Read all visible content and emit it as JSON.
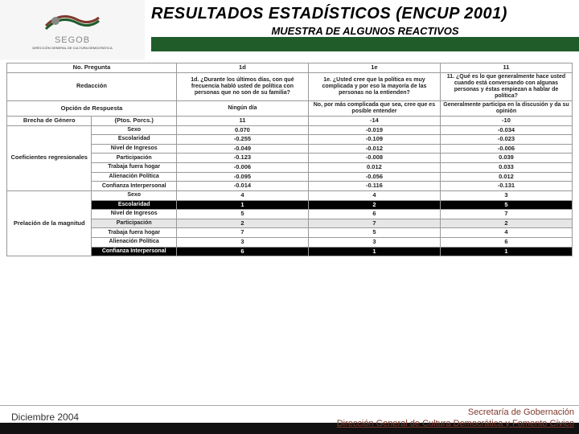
{
  "header": {
    "logo_label": "SEGOB",
    "logo_sub": "DIRECCIÓN GENERAL DE\nCULTURA DEMOCRÁTICA",
    "title": "RESULTADOS ESTADÍSTICOS (ENCUP 2001)",
    "subtitle": "MUESTRA DE ALGUNOS REACTIVOS"
  },
  "colors": {
    "green": "#1f5c2a",
    "brown": "#7e3a2c",
    "black": "#111111",
    "grey": "#e6e6e6",
    "border": "#999999"
  },
  "table": {
    "col_widths": [
      "15%",
      "15%",
      "23.33%",
      "23.33%",
      "23.33%"
    ],
    "head": {
      "r1": [
        "No. Pregunta",
        "",
        "1d",
        "1e",
        "11"
      ],
      "r2_label": "Redacción",
      "r2": [
        "1d. ¿Durante los últimos días, con qué frecuencia habló usted de política con personas que no son de su familia?",
        "1e. ¿Usted cree que la política es muy complicada y por eso la mayoría de las personas no la entienden?",
        "11. ¿Qué es lo que generalmente hace usted cuando está conversando con algunas personas y éstas empiezan a hablar de política?"
      ],
      "r3_label": "Opción de Respuesta",
      "r3": [
        "Ningún día",
        "No, por más complicada que sea, cree que es posible entender",
        "Generalmente participa en la discusión y da su opinión"
      ],
      "r4": [
        "Brecha de Género",
        "(Ptos. Porcs.)",
        "11",
        "-14",
        "-10"
      ]
    },
    "coef": {
      "group_label": "Coeficientes regresionales",
      "rows": [
        {
          "label": "Sexo",
          "vals": [
            "0.070",
            "-0.019",
            "-0.034"
          ]
        },
        {
          "label": "Escolaridad",
          "vals": [
            "-0.255",
            "-0.109",
            "-0.023"
          ]
        },
        {
          "label": "Nivel de Ingresos",
          "vals": [
            "-0.049",
            "-0.012",
            "-0.006"
          ]
        },
        {
          "label": "Participación",
          "vals": [
            "-0.123",
            "-0.008",
            "0.039"
          ]
        },
        {
          "label": "Trabaja fuera hogar",
          "vals": [
            "-0.006",
            "0.012",
            "0.033"
          ]
        },
        {
          "label": "Alienación Política",
          "vals": [
            "-0.095",
            "-0.056",
            "0.012"
          ]
        },
        {
          "label": "Confianza Interpersonal",
          "vals": [
            "-0.014",
            "-0.116",
            "-0.131"
          ]
        }
      ]
    },
    "prel": {
      "group_label": "Prelación de la magnitud",
      "rows": [
        {
          "label": "Sexo",
          "vals": [
            "4",
            "4",
            "3"
          ],
          "style": "plain"
        },
        {
          "label": "Escolaridad",
          "vals": [
            "1",
            "2",
            "5"
          ],
          "style": "black"
        },
        {
          "label": "Nivel de Ingresos",
          "vals": [
            "5",
            "6",
            "7"
          ],
          "style": "plain"
        },
        {
          "label": "Participación",
          "vals": [
            "2",
            "7",
            "2"
          ],
          "style": "grey"
        },
        {
          "label": "Trabaja fuera hogar",
          "vals": [
            "7",
            "5",
            "4"
          ],
          "style": "plain"
        },
        {
          "label": "Alienación Política",
          "vals": [
            "3",
            "3",
            "6"
          ],
          "style": "plain"
        },
        {
          "label": "Confianza Interpersonal",
          "vals": [
            "6",
            "1",
            "1"
          ],
          "style": "black"
        }
      ]
    }
  },
  "footer": {
    "date": "Diciembre  2004",
    "line1": "Secretaría de Gobernación",
    "line2": "Dirección General de Cultura Democrática y Fomento Cívico"
  }
}
